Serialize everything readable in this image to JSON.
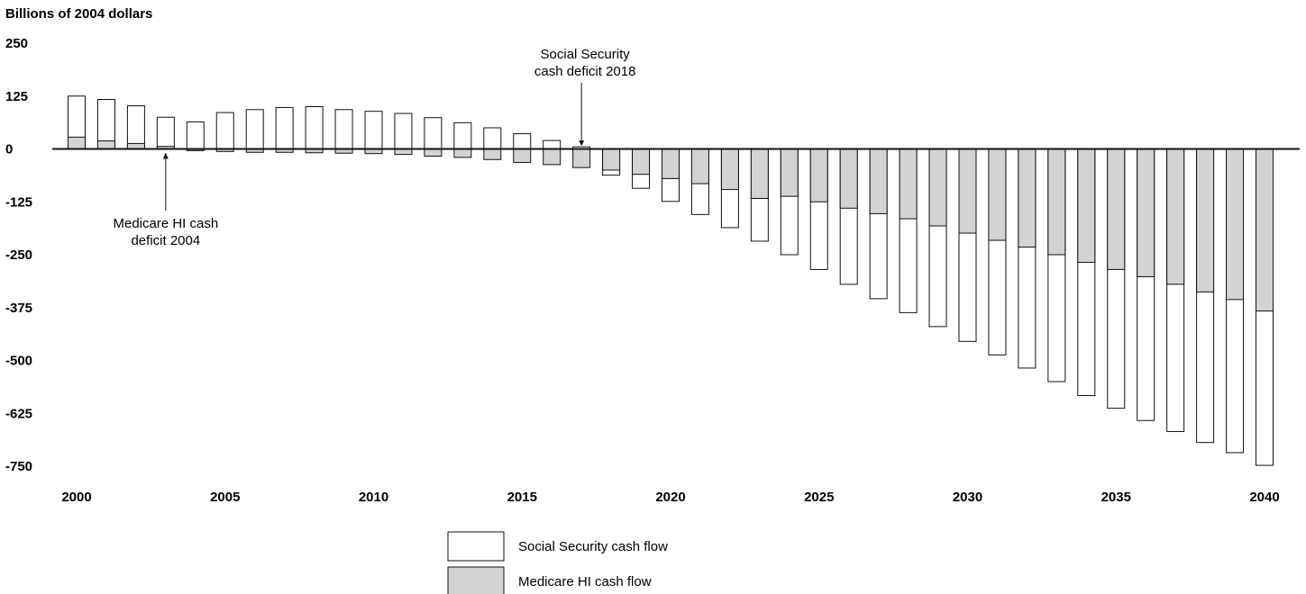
{
  "chart_data": {
    "type": "bar",
    "stacked_overlap": true,
    "ylabel": "Billions of 2004 dollars",
    "ylim": [
      -750,
      250
    ],
    "yticks": [
      250,
      125,
      0,
      -125,
      -250,
      -375,
      -500,
      -625,
      -750
    ],
    "xticks": [
      2000,
      2005,
      2010,
      2015,
      2020,
      2025,
      2030,
      2035,
      2040
    ],
    "x": [
      2000,
      2001,
      2002,
      2003,
      2004,
      2005,
      2006,
      2007,
      2008,
      2009,
      2010,
      2011,
      2012,
      2013,
      2014,
      2015,
      2016,
      2017,
      2018,
      2019,
      2020,
      2021,
      2022,
      2023,
      2024,
      2025,
      2026,
      2027,
      2028,
      2029,
      2030,
      2031,
      2032,
      2033,
      2034,
      2035,
      2036,
      2037,
      2038,
      2039,
      2040
    ],
    "series": [
      {
        "name": "Social Security cash flow",
        "color": "#ffffff",
        "values": [
          125,
          117,
          102,
          75,
          64,
          86,
          93,
          98,
          100,
          93,
          89,
          84,
          74,
          62,
          50,
          36,
          20,
          5,
          -62,
          -93,
          -124,
          -155,
          -186,
          -218,
          -250,
          -285,
          -320,
          -354,
          -387,
          -420,
          -455,
          -487,
          -518,
          -550,
          -583,
          -613,
          -642,
          -668,
          -694,
          -718,
          -748
        ]
      },
      {
        "name": "Medicare HI cash flow",
        "color": "#d3d3d3",
        "values": [
          28,
          19,
          13,
          6,
          -4,
          -6,
          -8,
          -8,
          -9,
          -10,
          -11,
          -13,
          -17,
          -20,
          -25,
          -32,
          -37,
          -44,
          -50,
          -60,
          -70,
          -82,
          -96,
          -117,
          -112,
          -125,
          -140,
          -153,
          -165,
          -182,
          -199,
          -216,
          -232,
          -250,
          -268,
          -285,
          -302,
          -320,
          -338,
          -356,
          -383
        ]
      }
    ],
    "annotations": [
      {
        "text_lines": [
          "Social Security",
          "cash deficit 2018"
        ],
        "x": 2017,
        "arrow_to": 5
      },
      {
        "text_lines": [
          "Medicare HI cash",
          "deficit 2004"
        ],
        "x": 2003,
        "arrow_to": 0
      }
    ],
    "legend": {
      "placement": "bottom-center"
    },
    "grid": false
  }
}
